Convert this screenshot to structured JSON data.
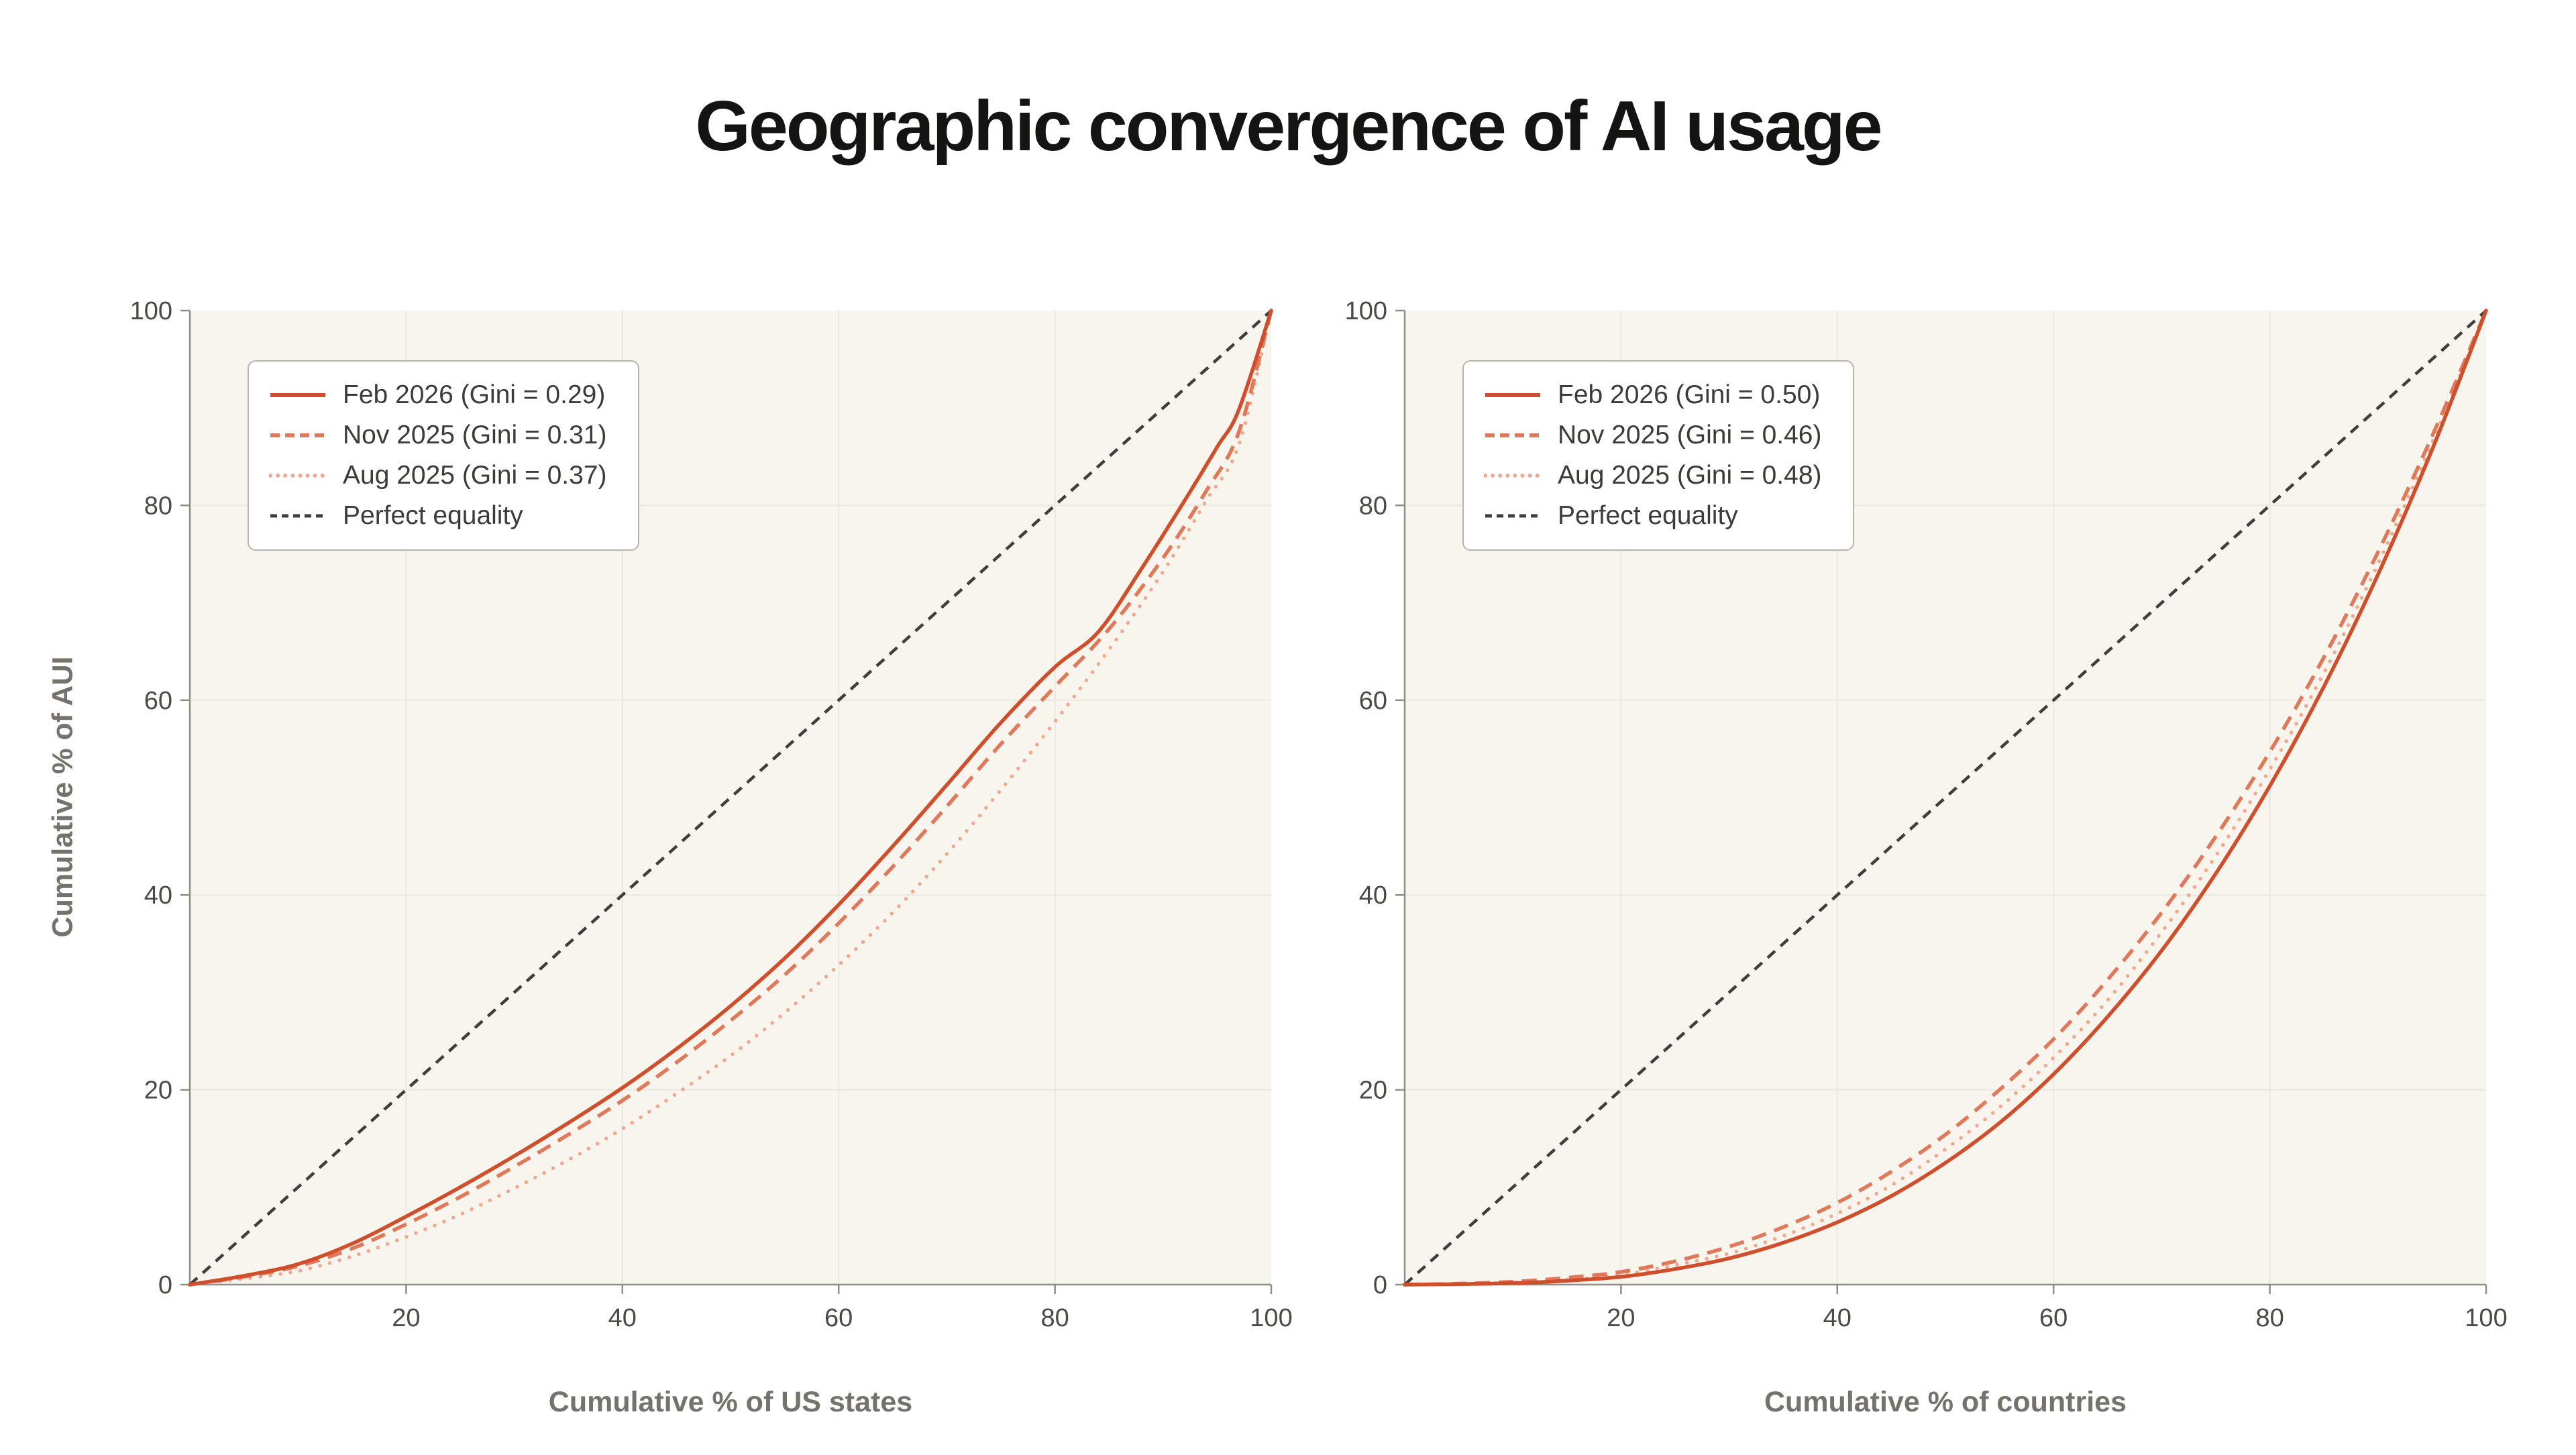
{
  "page": {
    "title": "Geographic convergence of AI usage"
  },
  "colors": {
    "background": "#ffffff",
    "plot_background": "#f7f5ee",
    "grid": "#eae7dd",
    "axis": "#8f8d86",
    "tick_text": "#4c4a45",
    "axis_title_text": "#75726b",
    "title_text": "#141413",
    "legend_border": "#b8b4ab",
    "legend_text": "#3d3b37",
    "feb": "#cf4e2b",
    "nov": "#e0785a",
    "aug": "#f0a98f",
    "equality": "#3f3e3c"
  },
  "chart_data": [
    {
      "type": "line",
      "title": "",
      "xlabel": "Cumulative % of US states",
      "ylabel": "Cumulative % of AUI",
      "xlim": [
        0,
        100
      ],
      "ylim": [
        0,
        100
      ],
      "xticks": [
        20,
        40,
        60,
        80,
        100
      ],
      "yticks": [
        0,
        20,
        40,
        60,
        80,
        100
      ],
      "grid": true,
      "legend_position": "top-left",
      "series": [
        {
          "label": "Feb 2026 (Gini = 0.29)",
          "period": "Feb 2026",
          "gini": 0.29,
          "style": "solid",
          "color_key": "feb",
          "is_reference": false,
          "points": [
            [
              0,
              0
            ],
            [
              5,
              0.9
            ],
            [
              10,
              2.1
            ],
            [
              15,
              4.2
            ],
            [
              20,
              7
            ],
            [
              25,
              10
            ],
            [
              30,
              13.2
            ],
            [
              35,
              16.6
            ],
            [
              40,
              20.2
            ],
            [
              45,
              24.2
            ],
            [
              50,
              28.6
            ],
            [
              55,
              33.5
            ],
            [
              60,
              39
            ],
            [
              65,
              45
            ],
            [
              70,
              51.3
            ],
            [
              75,
              57.7
            ],
            [
              80,
              63.4
            ],
            [
              84,
              67
            ],
            [
              88,
              73.5
            ],
            [
              92,
              80.5
            ],
            [
              95,
              86
            ],
            [
              97,
              89.8
            ],
            [
              100,
              100
            ]
          ]
        },
        {
          "label": "Nov 2025 (Gini = 0.31)",
          "period": "Nov 2025",
          "gini": 0.31,
          "style": "dashed",
          "color_key": "nov",
          "is_reference": false,
          "points": [
            [
              0,
              0
            ],
            [
              5,
              0.8
            ],
            [
              10,
              1.9
            ],
            [
              15,
              3.7
            ],
            [
              20,
              6.2
            ],
            [
              25,
              9
            ],
            [
              30,
              12.1
            ],
            [
              35,
              15.4
            ],
            [
              40,
              18.9
            ],
            [
              45,
              22.8
            ],
            [
              50,
              27.1
            ],
            [
              55,
              31.8
            ],
            [
              60,
              37.1
            ],
            [
              65,
              42.9
            ],
            [
              70,
              49.1
            ],
            [
              75,
              55.5
            ],
            [
              80,
              61.4
            ],
            [
              85,
              67.3
            ],
            [
              90,
              74.6
            ],
            [
              94,
              81.5
            ],
            [
              97,
              87.5
            ],
            [
              100,
              100
            ]
          ]
        },
        {
          "label": "Aug 2025 (Gini = 0.37)",
          "period": "Aug 2025",
          "gini": 0.37,
          "style": "dotted",
          "color_key": "aug",
          "is_reference": false,
          "points": [
            [
              0,
              0
            ],
            [
              5,
              0.6
            ],
            [
              10,
              1.4
            ],
            [
              15,
              2.9
            ],
            [
              20,
              4.9
            ],
            [
              25,
              7.2
            ],
            [
              30,
              9.9
            ],
            [
              35,
              12.8
            ],
            [
              40,
              16
            ],
            [
              45,
              19.6
            ],
            [
              50,
              23.5
            ],
            [
              55,
              27.9
            ],
            [
              60,
              32.8
            ],
            [
              65,
              38.2
            ],
            [
              70,
              44.2
            ],
            [
              75,
              50.8
            ],
            [
              80,
              57.8
            ],
            [
              85,
              65.2
            ],
            [
              90,
              73.2
            ],
            [
              94,
              80.5
            ],
            [
              97,
              86.2
            ],
            [
              100,
              100
            ]
          ]
        },
        {
          "label": "Perfect equality",
          "style": "dashed",
          "color_key": "equality",
          "is_reference": true,
          "points": [
            [
              0,
              0
            ],
            [
              100,
              100
            ]
          ]
        }
      ]
    },
    {
      "type": "line",
      "title": "",
      "xlabel": "Cumulative % of countries",
      "ylabel": "",
      "xlim": [
        0,
        100
      ],
      "ylim": [
        0,
        100
      ],
      "xticks": [
        20,
        40,
        60,
        80,
        100
      ],
      "yticks": [
        0,
        20,
        40,
        60,
        80,
        100
      ],
      "grid": true,
      "legend_position": "top-left",
      "series": [
        {
          "label": "Feb 2026 (Gini = 0.50)",
          "period": "Feb 2026",
          "gini": 0.5,
          "style": "solid",
          "color_key": "feb",
          "is_reference": false,
          "points": [
            [
              0,
              0
            ],
            [
              5,
              0.05
            ],
            [
              10,
              0.15
            ],
            [
              15,
              0.4
            ],
            [
              20,
              0.8
            ],
            [
              25,
              1.6
            ],
            [
              30,
              2.7
            ],
            [
              35,
              4.3
            ],
            [
              40,
              6.4
            ],
            [
              45,
              9.1
            ],
            [
              50,
              12.5
            ],
            [
              55,
              16.6
            ],
            [
              60,
              21.6
            ],
            [
              65,
              27.5
            ],
            [
              70,
              34.3
            ],
            [
              75,
              42.2
            ],
            [
              80,
              51.2
            ],
            [
              85,
              61.4
            ],
            [
              90,
              72.9
            ],
            [
              95,
              85.7
            ],
            [
              100,
              100
            ]
          ]
        },
        {
          "label": "Nov 2025 (Gini = 0.46)",
          "period": "Nov 2025",
          "gini": 0.46,
          "style": "dashed",
          "color_key": "nov",
          "is_reference": false,
          "points": [
            [
              0,
              0
            ],
            [
              5,
              0.1
            ],
            [
              10,
              0.3
            ],
            [
              15,
              0.7
            ],
            [
              20,
              1.3
            ],
            [
              25,
              2.4
            ],
            [
              30,
              3.9
            ],
            [
              35,
              5.9
            ],
            [
              40,
              8.4
            ],
            [
              45,
              11.6
            ],
            [
              50,
              15.4
            ],
            [
              55,
              20
            ],
            [
              60,
              25.2
            ],
            [
              65,
              31.3
            ],
            [
              70,
              38.2
            ],
            [
              75,
              46
            ],
            [
              80,
              54.7
            ],
            [
              85,
              64.4
            ],
            [
              90,
              75.2
            ],
            [
              95,
              87.1
            ],
            [
              100,
              100
            ]
          ]
        },
        {
          "label": "Aug 2025 (Gini = 0.48)",
          "period": "Aug 2025",
          "gini": 0.48,
          "style": "dotted",
          "color_key": "aug",
          "is_reference": false,
          "points": [
            [
              0,
              0
            ],
            [
              5,
              0.08
            ],
            [
              10,
              0.2
            ],
            [
              15,
              0.5
            ],
            [
              20,
              1
            ],
            [
              25,
              2
            ],
            [
              30,
              3.2
            ],
            [
              35,
              5
            ],
            [
              40,
              7.3
            ],
            [
              45,
              10.2
            ],
            [
              50,
              13.9
            ],
            [
              55,
              18.2
            ],
            [
              60,
              23.3
            ],
            [
              65,
              29.2
            ],
            [
              70,
              36.2
            ],
            [
              75,
              44
            ],
            [
              80,
              52.9
            ],
            [
              85,
              62.8
            ],
            [
              90,
              74
            ],
            [
              95,
              86.4
            ],
            [
              100,
              100
            ]
          ]
        },
        {
          "label": "Perfect equality",
          "style": "dashed",
          "color_key": "equality",
          "is_reference": true,
          "points": [
            [
              0,
              0
            ],
            [
              100,
              100
            ]
          ]
        }
      ]
    }
  ]
}
